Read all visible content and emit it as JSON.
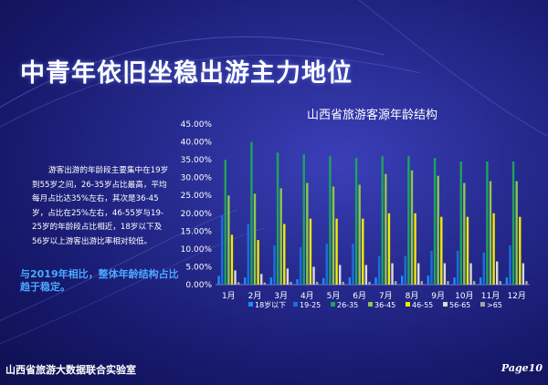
{
  "header": {
    "title": "中青年依旧坐稳出游主力地位"
  },
  "side": {
    "description": "游客出游的年龄段主要集中在19岁到55岁之间，26-35岁占比最高，平均每月占比达35%左右，其次是36-45岁，占比在25%左右，46-55岁与19-25岁的年龄段占比相近，18岁以下及56岁以上游客出游比率相对较低。",
    "highlight": "与2019年相比，整体年龄结构占比趋于稳定。"
  },
  "footer": {
    "left": "山西省旅游大数据联合实验室",
    "right": "Page10"
  },
  "colors": {
    "bg": "#262a8e",
    "series": [
      "#1c8bff",
      "#1a6fd9",
      "#1fa35a",
      "#8cc84b",
      "#f2ea00",
      "#d9d9d9",
      "#a6a6a6"
    ]
  },
  "chart_data": {
    "type": "bar",
    "title": "山西省旅游客源年龄结构",
    "categories": [
      "1月",
      "2月",
      "3月",
      "4月",
      "5月",
      "6月",
      "7月",
      "8月",
      "9月",
      "10月",
      "11月",
      "12月"
    ],
    "ylim": [
      0,
      45
    ],
    "yticks": [
      "0.00%",
      "5.00%",
      "10.00%",
      "15.00%",
      "20.00%",
      "25.00%",
      "30.00%",
      "35.00%",
      "40.00%",
      "45.00%"
    ],
    "legend_position": "bottom",
    "series": [
      {
        "name": "18岁以下",
        "values": [
          2.5,
          2.0,
          2.0,
          1.5,
          1.8,
          2.0,
          2.0,
          2.5,
          2.5,
          2.0,
          2.0,
          2.0
        ]
      },
      {
        "name": "19-25",
        "values": [
          19.5,
          17.0,
          11.0,
          10.5,
          11.5,
          11.5,
          8.0,
          8.0,
          9.5,
          9.5,
          9.0,
          11.0
        ]
      },
      {
        "name": "26-35",
        "values": [
          35.0,
          40.0,
          37.0,
          36.5,
          36.0,
          35.5,
          36.0,
          36.0,
          35.5,
          34.5,
          34.5,
          34.5
        ]
      },
      {
        "name": "36-45",
        "values": [
          25.0,
          25.5,
          27.0,
          28.5,
          27.5,
          28.0,
          31.0,
          32.0,
          30.5,
          28.5,
          29.0,
          29.0
        ]
      },
      {
        "name": "46-55",
        "values": [
          14.0,
          12.5,
          17.0,
          18.5,
          18.5,
          18.5,
          20.0,
          20.0,
          19.0,
          19.0,
          20.0,
          19.0
        ]
      },
      {
        "name": "56-65",
        "values": [
          4.0,
          3.0,
          4.5,
          5.0,
          5.5,
          5.5,
          6.0,
          6.0,
          6.0,
          6.0,
          6.5,
          6.0
        ]
      },
      {
        "name": ">65",
        "values": [
          0.7,
          0.6,
          0.8,
          0.8,
          0.8,
          0.8,
          1.0,
          1.0,
          1.0,
          1.0,
          1.0,
          1.0
        ]
      }
    ]
  }
}
